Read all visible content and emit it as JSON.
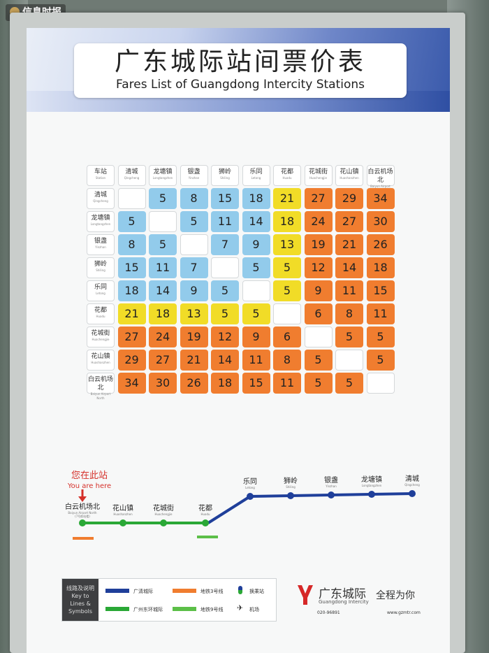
{
  "badge": {
    "text": "信息时报"
  },
  "title": {
    "cn": "广东城际站间票价表",
    "en": "Fares List of Guangdong Intercity Stations"
  },
  "fare_table": {
    "corner": {
      "cn": "车站",
      "en": "Station"
    },
    "columns": [
      {
        "cn": "清城",
        "en": "Qingcheng"
      },
      {
        "cn": "龙塘镇",
        "en": "Longtangzhen"
      },
      {
        "cn": "银盏",
        "en": "Yinzhan"
      },
      {
        "cn": "狮岭",
        "en": "Shiling"
      },
      {
        "cn": "乐同",
        "en": "Letong"
      },
      {
        "cn": "花都",
        "en": "Huadu"
      },
      {
        "cn": "花城街",
        "en": "Huachengjie"
      },
      {
        "cn": "花山镇",
        "en": "Huashanzhen"
      },
      {
        "cn": "白云机场北",
        "en": "Baiyun Airport North"
      }
    ],
    "rows": [
      {
        "cn": "清城",
        "en": "Qingcheng",
        "fares": [
          "",
          "5",
          "8",
          "15",
          "18",
          "21",
          "27",
          "29",
          "34"
        ]
      },
      {
        "cn": "龙塘镇",
        "en": "Longtangzhen",
        "fares": [
          "5",
          "",
          "5",
          "11",
          "14",
          "18",
          "24",
          "27",
          "30"
        ]
      },
      {
        "cn": "银盏",
        "en": "Yinzhan",
        "fares": [
          "8",
          "5",
          "",
          "7",
          "9",
          "13",
          "19",
          "21",
          "26"
        ]
      },
      {
        "cn": "狮岭",
        "en": "Shiling",
        "fares": [
          "15",
          "11",
          "7",
          "",
          "5",
          "5",
          "12",
          "14",
          "18"
        ]
      },
      {
        "cn": "乐同",
        "en": "Letong",
        "fares": [
          "18",
          "14",
          "9",
          "5",
          "",
          "5",
          "9",
          "11",
          "15"
        ]
      },
      {
        "cn": "花都",
        "en": "Huadu",
        "fares": [
          "21",
          "18",
          "13",
          "5",
          "5",
          "",
          "6",
          "8",
          "11"
        ]
      },
      {
        "cn": "花城街",
        "en": "Huachengjie",
        "fares": [
          "27",
          "24",
          "19",
          "12",
          "9",
          "6",
          "",
          "5",
          "5"
        ]
      },
      {
        "cn": "花山镇",
        "en": "Huashanzhen",
        "fares": [
          "29",
          "27",
          "21",
          "14",
          "11",
          "8",
          "5",
          "",
          "5"
        ]
      },
      {
        "cn": "白云机场北",
        "en": "Baiyun Airport North",
        "fares": [
          "34",
          "30",
          "26",
          "18",
          "15",
          "11",
          "5",
          "5",
          ""
        ]
      }
    ],
    "colors": {
      "blue": "#92cbeb",
      "yellow": "#f1dc27",
      "orange": "#f07d2f"
    }
  },
  "route_map": {
    "you_are_here": {
      "cn": "您在此站",
      "en": "You are here"
    },
    "stations": [
      {
        "cn": "白云机场北",
        "en": "Baiyun Airport North",
        "note": "(7号航站楼)"
      },
      {
        "cn": "花山镇",
        "en": "Huashanzhen"
      },
      {
        "cn": "花城街",
        "en": "Huachengjie"
      },
      {
        "cn": "花都",
        "en": "Huadu"
      },
      {
        "cn": "乐同",
        "en": "Letong"
      },
      {
        "cn": "狮岭",
        "en": "Shiling"
      },
      {
        "cn": "银盏",
        "en": "Yinzhan"
      },
      {
        "cn": "龙塘镇",
        "en": "Longtangzhen"
      },
      {
        "cn": "清城",
        "en": "Qingcheng"
      }
    ],
    "colors": {
      "guangqing": "#1f3f9a",
      "dongguan": "#2aa836",
      "metro3": "#f07d2f",
      "metro9": "#5cbf48"
    }
  },
  "legend": {
    "key": [
      "线路及说明",
      "Key to",
      "Lines &",
      "Symbols"
    ],
    "items": [
      {
        "cn": "广清城际",
        "color": "#1f3f9a"
      },
      {
        "cn": "广州东环城际",
        "color": "#2aa836"
      },
      {
        "cn": "地铁3号线",
        "color": "#f07d2f"
      },
      {
        "cn": "地铁9号线",
        "color": "#5cbf48"
      },
      {
        "cn": "换乘站"
      },
      {
        "cn": "机场"
      }
    ]
  },
  "brand": {
    "name": "广东城际",
    "en": "Guangdong Intercity",
    "slogan": "全程为你",
    "phone": "020-96891",
    "website": "www.gzmtr.com"
  }
}
